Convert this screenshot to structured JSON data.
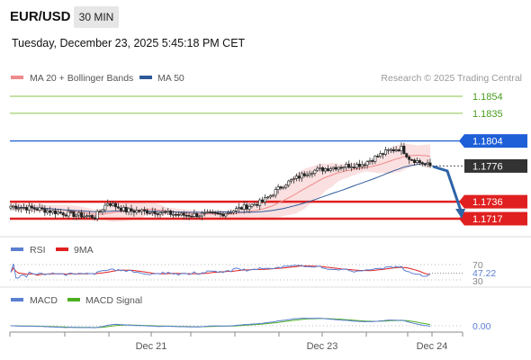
{
  "header": {
    "pair": "EUR/USD",
    "timeframe": "30 MIN",
    "datetime": "Tuesday, December 23, 2025 5:45:18 PM CET"
  },
  "legend": {
    "ma20": "MA 20 + Bollinger Bands",
    "ma50": "MA 50",
    "credit": "Research © 2025 Trading Central"
  },
  "colors": {
    "ma20": "#f08a8a",
    "ma50": "#2e5a9a",
    "band_fill": "#f8d6d6",
    "resistance_green": "#8bc34a",
    "pivot_blue": "#1e5fd8",
    "support_red": "#e02020",
    "current_dark": "#333333",
    "arrow": "#2e64a8",
    "rsi": "#5b7fd1",
    "rsi_ma": "#e02020",
    "macd": "#5b7fd1",
    "macd_signal": "#4caf22"
  },
  "chart_data": [
    {
      "type": "candlestick",
      "title": "EUR/USD",
      "ylim": [
        1.171,
        1.186
      ],
      "x_ticks": [
        "Dec 21",
        "Dec 23",
        "Dec 24"
      ],
      "levels": [
        {
          "value": 1.1854,
          "label": "1.1854",
          "kind": "resistance"
        },
        {
          "value": 1.1835,
          "label": "1.1835",
          "kind": "resistance"
        },
        {
          "value": 1.1804,
          "label": "1.1804",
          "kind": "pivot"
        },
        {
          "value": 1.1776,
          "label": "1.1776",
          "kind": "current"
        },
        {
          "value": 1.1736,
          "label": "1.1736",
          "kind": "support"
        },
        {
          "value": 1.1717,
          "label": "1.1717",
          "kind": "support"
        }
      ],
      "anchors": [
        {
          "i": 0,
          "v": 1.1731
        },
        {
          "i": 10,
          "v": 1.1728
        },
        {
          "i": 20,
          "v": 1.1723
        },
        {
          "i": 32,
          "v": 1.1719
        },
        {
          "i": 37,
          "v": 1.1735
        },
        {
          "i": 44,
          "v": 1.1726
        },
        {
          "i": 55,
          "v": 1.1725
        },
        {
          "i": 65,
          "v": 1.1721
        },
        {
          "i": 80,
          "v": 1.1722
        },
        {
          "i": 88,
          "v": 1.1729
        },
        {
          "i": 96,
          "v": 1.1736
        },
        {
          "i": 104,
          "v": 1.1755
        },
        {
          "i": 114,
          "v": 1.177
        },
        {
          "i": 124,
          "v": 1.1775
        },
        {
          "i": 134,
          "v": 1.1778
        },
        {
          "i": 144,
          "v": 1.1793
        },
        {
          "i": 149,
          "v": 1.1796
        },
        {
          "i": 152,
          "v": 1.1785
        },
        {
          "i": 157,
          "v": 1.1779
        },
        {
          "i": 160,
          "v": 1.1776
        }
      ]
    },
    {
      "type": "line",
      "name": "RSI",
      "series": [
        {
          "name": "RSI"
        },
        {
          "name": "9MA"
        }
      ],
      "levels": [
        "70",
        "30"
      ],
      "value_label": "47.22"
    },
    {
      "type": "line",
      "name": "MACD",
      "series": [
        {
          "name": "MACD"
        },
        {
          "name": "MACD Signal"
        }
      ],
      "value_label": "0.00"
    }
  ]
}
